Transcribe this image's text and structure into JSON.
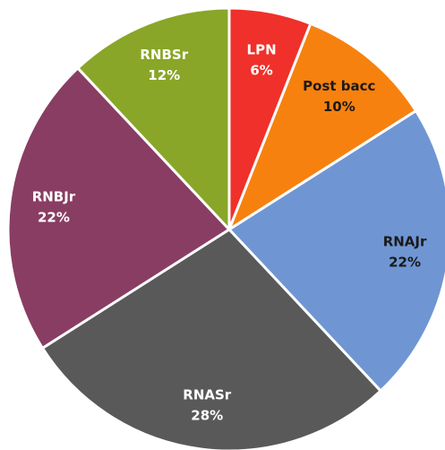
{
  "chart_data": {
    "type": "pie",
    "categories": [
      "LPN",
      "Post bacc",
      "RNAJr",
      "RNASr",
      "RNBJr",
      "RNBSr"
    ],
    "values": [
      6,
      10,
      22,
      28,
      22,
      12
    ],
    "value_labels": [
      "6%",
      "10%",
      "22%",
      "28%",
      "22%",
      "12%"
    ],
    "colors": [
      "#f0302a",
      "#f7810f",
      "#6f96d3",
      "#595959",
      "#893d63",
      "#89a628"
    ],
    "label_colors": [
      "#ffffff",
      "#1a1a1a",
      "#1a1a1a",
      "#ffffff",
      "#ffffff",
      "#ffffff"
    ]
  }
}
